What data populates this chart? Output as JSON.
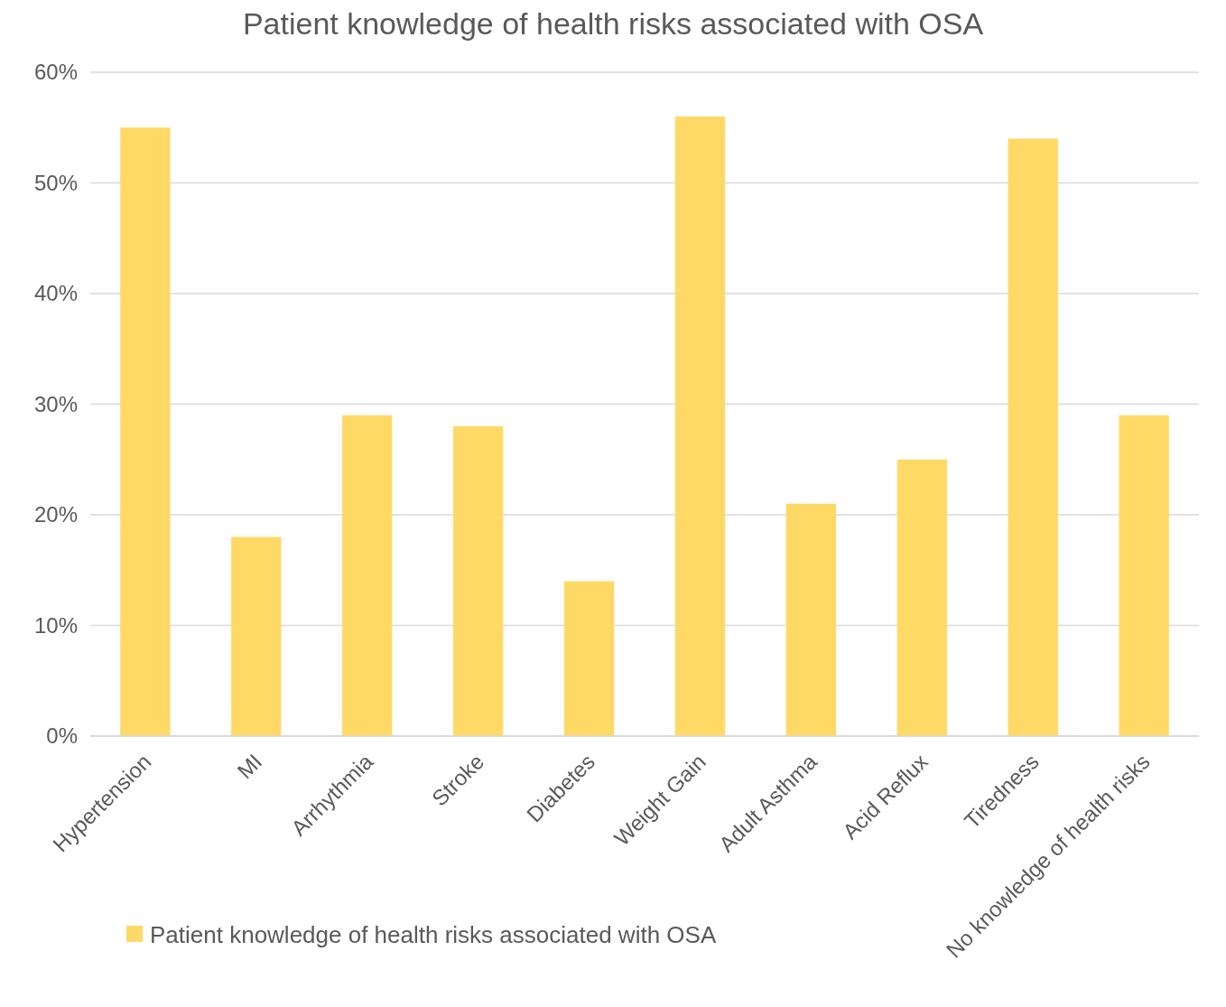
{
  "chart_data": {
    "type": "bar",
    "title": "Patient knowledge of health risks associated with OSA",
    "categories": [
      "Hypertension",
      "MI",
      "Arrhythmia",
      "Stroke",
      "Diabetes",
      "Weight Gain",
      "Adult Asthma",
      "Acid Reflux",
      "Tiredness",
      "No knowledge of health risks"
    ],
    "series": [
      {
        "name": "Patient knowledge of health risks associated with OSA",
        "color": "#ffd966",
        "values": [
          55,
          18,
          29,
          28,
          14,
          56,
          21,
          25,
          54,
          29
        ]
      }
    ],
    "ylim": [
      0,
      60
    ],
    "yticks": [
      {
        "value": 0,
        "label": "0%"
      },
      {
        "value": 10,
        "label": "10%"
      },
      {
        "value": 20,
        "label": "20%"
      },
      {
        "value": 30,
        "label": "30%"
      },
      {
        "value": 40,
        "label": "40%"
      },
      {
        "value": 50,
        "label": "50%"
      },
      {
        "value": 60,
        "label": "60%"
      }
    ],
    "grid": "y",
    "legend": "bottom"
  }
}
